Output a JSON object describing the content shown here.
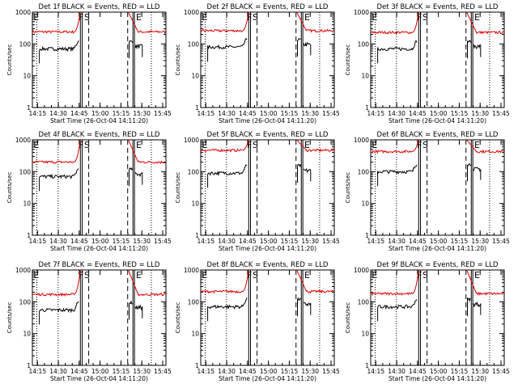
{
  "chart_data": [
    {
      "type": "line",
      "title": "Det 1f BLACK = Events, RED = LLD",
      "xlabel": "Start Time (26-Oct-04 14:11:20)",
      "ylabel": "Counts/sec",
      "log_y": true,
      "ylim": [
        1,
        1000
      ],
      "ytick_labels": [
        "1",
        "10",
        "100",
        "1000"
      ],
      "xtick_labels": [
        "14:15",
        "14:30",
        "14:45",
        "15:00",
        "15:15",
        "15:30",
        "15:45"
      ],
      "markers": [
        "E",
        "F",
        "S",
        "E"
      ],
      "series": [
        {
          "name": "Events",
          "color": "#000000",
          "red_base": null,
          "black_base": 70
        },
        {
          "name": "LLD",
          "color": "#e00000",
          "red_base": 240,
          "black_base": null
        }
      ]
    },
    {
      "type": "line",
      "title": "Det 2f BLACK = Events, RED = LLD",
      "xlabel": "Start Time (26-Oct-04 14:11:20)",
      "ylabel": "Counts/sec",
      "log_y": true,
      "ylim": [
        1,
        1000
      ],
      "ytick_labels": [
        "1",
        "10",
        "100",
        "1000"
      ],
      "xtick_labels": [
        "14:15",
        "14:30",
        "14:45",
        "15:00",
        "15:15",
        "15:30",
        "15:45"
      ],
      "markers": [
        "E",
        "F",
        "S",
        "E"
      ],
      "series": [
        {
          "name": "Events",
          "color": "#000000",
          "black_base": 80
        },
        {
          "name": "LLD",
          "color": "#e00000",
          "red_base": 260
        }
      ]
    },
    {
      "type": "line",
      "title": "Det 3f BLACK = Events, RED = LLD",
      "xlabel": "Start Time (26-Oct-04 14:11:20)",
      "ylabel": "Counts/sec",
      "log_y": true,
      "ylim": [
        1,
        1000
      ],
      "ytick_labels": [
        "1",
        "10",
        "100",
        "1000"
      ],
      "xtick_labels": [
        "14:15",
        "14:30",
        "14:45",
        "15:00",
        "15:15",
        "15:30",
        "15:45"
      ],
      "markers": [
        "E",
        "F",
        "S",
        "E"
      ],
      "series": [
        {
          "name": "Events",
          "color": "#000000",
          "black_base": 70
        },
        {
          "name": "LLD",
          "color": "#e00000",
          "red_base": 230
        }
      ]
    },
    {
      "type": "line",
      "title": "Det 4f BLACK = Events, RED = LLD",
      "xlabel": "Start Time (26-Oct-04 14:11:20)",
      "ylabel": "Counts/sec",
      "log_y": true,
      "ylim": [
        1,
        1000
      ],
      "ytick_labels": [
        "1",
        "10",
        "100",
        "1000"
      ],
      "xtick_labels": [
        "14:15",
        "14:30",
        "14:45",
        "15:00",
        "15:15",
        "15:30",
        "15:45"
      ],
      "markers": [
        "E",
        "F",
        "S",
        "E"
      ],
      "series": [
        {
          "name": "Events",
          "color": "#000000",
          "black_base": 70
        },
        {
          "name": "LLD",
          "color": "#e00000",
          "red_base": 200
        }
      ]
    },
    {
      "type": "line",
      "title": "Det 5f BLACK = Events, RED = LLD",
      "xlabel": "Start Time (26-Oct-04 14:11:20)",
      "ylabel": "Counts/sec",
      "log_y": true,
      "ylim": [
        1,
        1000
      ],
      "ytick_labels": [
        "1",
        "10",
        "100",
        "1000"
      ],
      "xtick_labels": [
        "14:15",
        "14:30",
        "14:45",
        "15:00",
        "15:15",
        "15:30",
        "15:45"
      ],
      "markers": [
        "E",
        "F",
        "S",
        "E"
      ],
      "series": [
        {
          "name": "Events",
          "color": "#000000",
          "black_base": 90
        },
        {
          "name": "LLD",
          "color": "#e00000",
          "red_base": 470
        }
      ]
    },
    {
      "type": "line",
      "title": "Det 6f BLACK = Events, RED = LLD",
      "xlabel": "Start Time (26-Oct-04 14:11:20)",
      "ylabel": "Counts/sec",
      "log_y": true,
      "ylim": [
        1,
        1000
      ],
      "ytick_labels": [
        "1",
        "10",
        "100",
        "1000"
      ],
      "xtick_labels": [
        "14:15",
        "14:30",
        "14:45",
        "15:00",
        "15:15",
        "15:30",
        "15:45"
      ],
      "markers": [
        "E",
        "F",
        "S",
        "E"
      ],
      "series": [
        {
          "name": "Events",
          "color": "#000000",
          "black_base": 100
        },
        {
          "name": "LLD",
          "color": "#e00000",
          "red_base": 430
        }
      ]
    },
    {
      "type": "line",
      "title": "Det 7f BLACK = Events, RED = LLD",
      "xlabel": "Start Time (26-Oct-04 14:11:20)",
      "ylabel": "Counts/sec",
      "log_y": true,
      "ylim": [
        1,
        1000
      ],
      "ytick_labels": [
        "1",
        "10",
        "100",
        "1000"
      ],
      "xtick_labels": [
        "14:15",
        "14:30",
        "14:45",
        "15:00",
        "15:15",
        "15:30",
        "15:45"
      ],
      "markers": [
        "E",
        "F",
        "S",
        "E"
      ],
      "series": [
        {
          "name": "Events",
          "color": "#000000",
          "black_base": 55
        },
        {
          "name": "LLD",
          "color": "#e00000",
          "red_base": 170
        }
      ]
    },
    {
      "type": "line",
      "title": "Det 8f BLACK = Events, RED = LLD",
      "xlabel": "Start Time (26-Oct-04 14:11:20)",
      "ylabel": "Counts/sec",
      "log_y": true,
      "ylim": [
        1,
        1000
      ],
      "ytick_labels": [
        "1",
        "10",
        "100",
        "1000"
      ],
      "xtick_labels": [
        "14:15",
        "14:30",
        "14:45",
        "15:00",
        "15:15",
        "15:30",
        "15:45"
      ],
      "markers": [
        "E",
        "F",
        "S",
        "E"
      ],
      "series": [
        {
          "name": "Events",
          "color": "#000000",
          "black_base": 70
        },
        {
          "name": "LLD",
          "color": "#e00000",
          "red_base": 210
        }
      ]
    },
    {
      "type": "line",
      "title": "Det 9f BLACK = Events, RED = LLD",
      "xlabel": "Start Time (26-Oct-04 14:11:20)",
      "ylabel": "Counts/sec",
      "log_y": true,
      "ylim": [
        1,
        1000
      ],
      "ytick_labels": [
        "1",
        "10",
        "100",
        "1000"
      ],
      "xtick_labels": [
        "14:15",
        "14:30",
        "14:45",
        "15:00",
        "15:15",
        "15:30",
        "15:45"
      ],
      "markers": [
        "E",
        "F",
        "S",
        "E"
      ],
      "series": [
        {
          "name": "Events",
          "color": "#000000",
          "black_base": 70
        },
        {
          "name": "LLD",
          "color": "#e00000",
          "red_base": 180
        }
      ]
    }
  ]
}
